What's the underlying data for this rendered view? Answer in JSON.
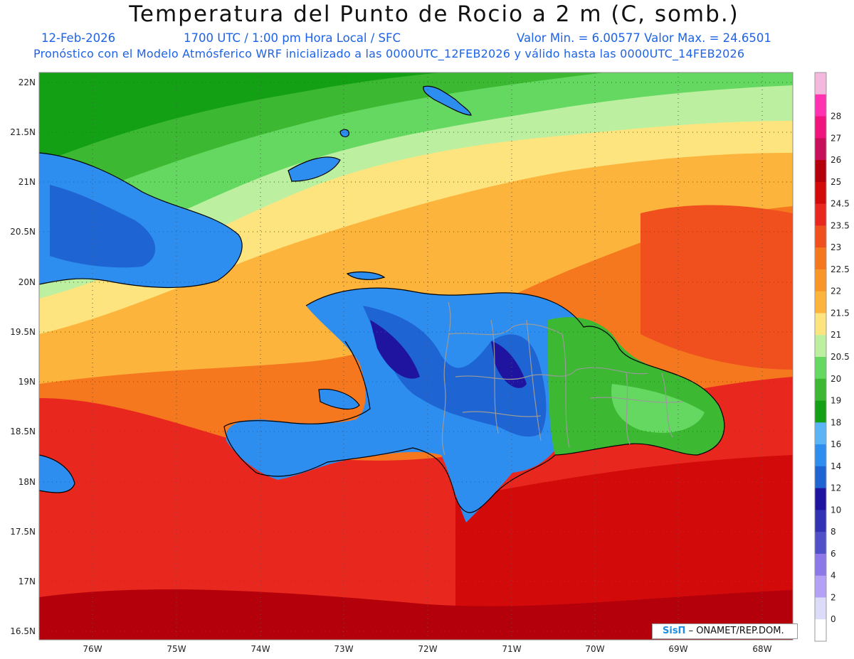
{
  "header": {
    "title": "Temperatura del Punto de Rocio a 2 m (C, somb.)",
    "date": "12-Feb-2026",
    "time": "1700 UTC / 1:00 pm Hora Local / SFC",
    "minmax": "Valor Min. = 6.00577  Valor Max. = 24.6501",
    "forecast": "Pronóstico con el Modelo Atmósferico WRF inicializado a las 0000UTC_12FEB2026 y válido hasta las  0000UTC_14FEB2026"
  },
  "axes": {
    "lat_labels": [
      "22N",
      "21.5N",
      "21N",
      "20.5N",
      "20N",
      "19.5N",
      "19N",
      "18.5N",
      "18N",
      "17.5N",
      "17N",
      "16.5N"
    ],
    "lon_labels": [
      "76W",
      "75W",
      "74W",
      "73W",
      "72W",
      "71W",
      "70W",
      "69W",
      "68W"
    ]
  },
  "colorbar": {
    "labels": [
      "0",
      "2",
      "4",
      "6",
      "8",
      "10",
      "12",
      "14",
      "16",
      "18",
      "19",
      "20",
      "20.5",
      "21",
      "21.5",
      "22",
      "22.5",
      "23",
      "23.5",
      "24.5",
      "25",
      "26",
      "27",
      "28"
    ],
    "colors": [
      "#f4b8dc",
      "#ff33b0",
      "#f0147c",
      "#c8105a",
      "#b4000a",
      "#d20a0a",
      "#e8281e",
      "#f0501e",
      "#f5781e",
      "#fa9628",
      "#fcb43c",
      "#fde47e",
      "#bcf0a0",
      "#64d860",
      "#3cb832",
      "#14a014",
      "#5ab4f5",
      "#2e8ef0",
      "#1e64d2",
      "#1e14a0",
      "#3232b4",
      "#5050c8",
      "#8c78e6",
      "#b4a0f5",
      "#dcdcf8",
      "#ffffff"
    ]
  },
  "credit": {
    "brand": "SisΠ",
    "text": " – ONAMET/REP.DOM."
  }
}
